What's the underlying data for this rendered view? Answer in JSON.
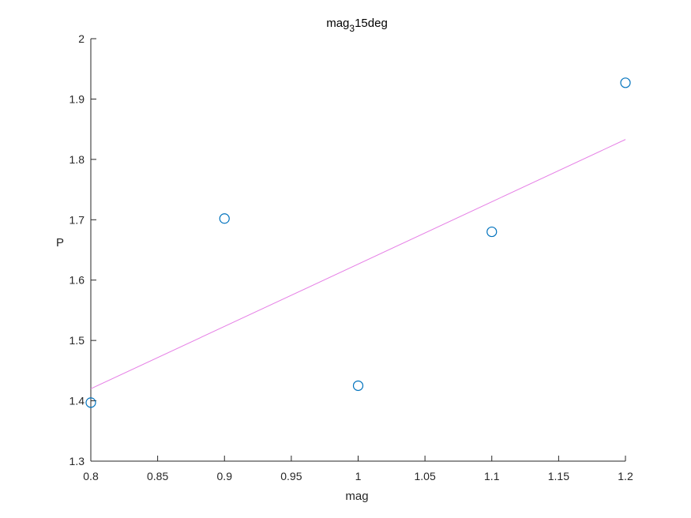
{
  "chart_data": {
    "type": "scatter",
    "title": "mag",
    "title_subscript": "3",
    "title_suffix": "15deg",
    "xlabel": "mag",
    "ylabel": "P",
    "xlim": [
      0.8,
      1.2
    ],
    "ylim": [
      1.3,
      2.0
    ],
    "xticks": [
      "0.8",
      "0.85",
      "0.9",
      "0.95",
      "1",
      "1.05",
      "1.1",
      "1.15",
      "1.2"
    ],
    "yticks": [
      "1.3",
      "1.4",
      "1.5",
      "1.6",
      "1.7",
      "1.8",
      "1.9",
      "2"
    ],
    "grid": false,
    "series": [
      {
        "marker": "circle-open",
        "color": "#0072bd",
        "points": [
          {
            "x": 0.8,
            "y": 1.397
          },
          {
            "x": 0.9,
            "y": 1.702
          },
          {
            "x": 1.0,
            "y": 1.425
          },
          {
            "x": 1.1,
            "y": 1.68
          },
          {
            "x": 1.2,
            "y": 1.927
          }
        ]
      },
      {
        "line": "fit",
        "color": "#e680e6",
        "points": [
          {
            "x": 0.8,
            "y": 1.42
          },
          {
            "x": 1.2,
            "y": 1.833
          }
        ]
      }
    ]
  }
}
